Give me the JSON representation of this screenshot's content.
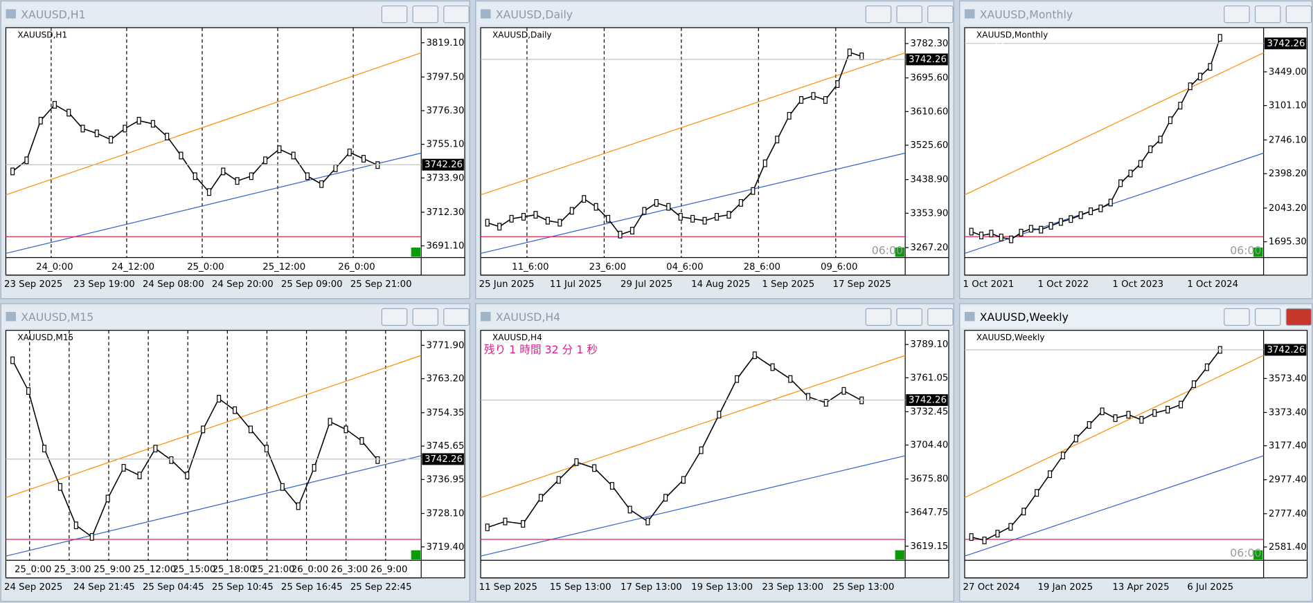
{
  "windows": [
    {
      "title": "XAUUSD,H1",
      "label": "XAUUSD,H1",
      "active": false,
      "ylim": [
        3683.7,
        3828.6
      ],
      "yticks": [
        {
          "value": 3819.1,
          "label": "3819.10"
        },
        {
          "value": 3797.5,
          "label": "3797.50"
        },
        {
          "value": 3776.3,
          "label": "3776.30"
        },
        {
          "value": 3755.1,
          "label": "3755.10"
        },
        {
          "value": 3733.9,
          "label": "3733.90"
        },
        {
          "value": 3712.3,
          "label": "3712.30"
        },
        {
          "value": 3691.1,
          "label": "3691.10"
        }
      ],
      "price": 3742.26,
      "periods": [
        "24_0:00",
        "24_12:00",
        "25_0:00",
        "25_12:00",
        "26_0:00"
      ],
      "dates": [
        "23 Sep 2025",
        "23 Sep 19:00",
        "24 Sep 08:00",
        "24 Sep 20:00",
        "25 Sep 09:00",
        "25 Sep 21:00"
      ],
      "closes": [
        3738,
        3745,
        3770,
        3780,
        3775,
        3765,
        3762,
        3758,
        3765,
        3770,
        3768,
        3760,
        3748,
        3735,
        3725,
        3738,
        3732,
        3735,
        3745,
        3752,
        3748,
        3735,
        3730,
        3740,
        3750,
        3746,
        3742
      ]
    },
    {
      "title": "XAUUSD,Daily",
      "label": "XAUUSD,Daily",
      "active": false,
      "ylim": [
        3241.9,
        3822.4
      ],
      "yticks": [
        {
          "value": 3782.3,
          "label": "3782.30"
        },
        {
          "value": 3695.6,
          "label": "3695.60"
        },
        {
          "value": 3610.6,
          "label": "3610.60"
        },
        {
          "value": 3525.6,
          "label": "3525.60"
        },
        {
          "value": 3438.9,
          "label": "3438.90"
        },
        {
          "value": 3353.9,
          "label": "3353.90"
        },
        {
          "value": 3267.2,
          "label": "3267.20"
        }
      ],
      "price": 3742.26,
      "countdown": "06:00",
      "periods": [
        "11_6:00",
        "23_6:00",
        "04_6:00",
        "28_6:00",
        "09_6:00"
      ],
      "dates": [
        "25 Jun 2025",
        "11 Jul 2025",
        "29 Jul 2025",
        "14 Aug 2025",
        "1 Sep 2025",
        "17 Sep 2025"
      ],
      "closes": [
        3330,
        3320,
        3340,
        3345,
        3350,
        3335,
        3330,
        3360,
        3390,
        3370,
        3340,
        3300,
        3310,
        3360,
        3380,
        3370,
        3345,
        3340,
        3335,
        3345,
        3350,
        3380,
        3410,
        3480,
        3540,
        3600,
        3640,
        3650,
        3640,
        3680,
        3760,
        3750
      ]
    },
    {
      "title": "XAUUSD,Monthly",
      "label": "XAUUSD,Monthly",
      "active": false,
      "ylim": [
        1532,
        3905
      ],
      "yticks": [
        {
          "value": 3449,
          "label": "3449.00"
        },
        {
          "value": 3101.1,
          "label": "3101.10"
        },
        {
          "value": 2746.1,
          "label": "2746.10"
        },
        {
          "value": 2398.2,
          "label": "2398.20"
        },
        {
          "value": 2043.2,
          "label": "2043.20"
        },
        {
          "value": 1695.3,
          "label": "1695.30"
        }
      ],
      "price": 3742.26,
      "countdown": "06:00",
      "note": "Y1",
      "periods": [],
      "dates": [
        "1 Oct 2021",
        "1 Oct 2022",
        "1 Oct 2023",
        "1 Oct 2024"
      ],
      "closes": [
        1800,
        1760,
        1780,
        1740,
        1720,
        1790,
        1830,
        1820,
        1860,
        1900,
        1930,
        1970,
        2010,
        2040,
        2100,
        2300,
        2400,
        2500,
        2650,
        2750,
        2950,
        3100,
        3300,
        3400,
        3500,
        3800
      ]
    },
    {
      "title": "XAUUSD,M15",
      "label": "XAUUSD,M15",
      "active": false,
      "ylim": [
        3715.9,
        3775.8
      ],
      "yticks": [
        {
          "value": 3771.9,
          "label": "3771.90"
        },
        {
          "value": 3763.2,
          "label": "3763.20"
        },
        {
          "value": 3754.35,
          "label": "3754.35"
        },
        {
          "value": 3745.65,
          "label": "3745.65"
        },
        {
          "value": 3736.95,
          "label": "3736.95"
        },
        {
          "value": 3728.1,
          "label": "3728.10"
        },
        {
          "value": 3719.4,
          "label": "3719.40"
        }
      ],
      "price": 3742.26,
      "periods": [
        "25_0:00",
        "25_3:00",
        "25_9:00",
        "25_12:00",
        "25_15:00",
        "25_18:00",
        "25_21:00",
        "26_0:00",
        "26_3:00",
        "26_9:00"
      ],
      "dates": [
        "24 Sep 2025",
        "24 Sep 21:45",
        "25 Sep 04:45",
        "25 Sep 10:45",
        "25 Sep 16:45",
        "25 Sep 22:45"
      ],
      "closes": [
        3768,
        3760,
        3745,
        3735,
        3725,
        3722,
        3732,
        3740,
        3738,
        3745,
        3742,
        3738,
        3750,
        3758,
        3755,
        3750,
        3745,
        3735,
        3730,
        3740,
        3752,
        3750,
        3747,
        3742
      ]
    },
    {
      "title": "XAUUSD,H4",
      "label": "XAUUSD,H4",
      "active": false,
      "ylim": [
        3607.3,
        3801
      ],
      "yticks": [
        {
          "value": 3789.1,
          "label": "3789.10"
        },
        {
          "value": 3761.05,
          "label": "3761.05"
        },
        {
          "value": 3732.45,
          "label": "3732.45"
        },
        {
          "value": 3704.4,
          "label": "3704.40"
        },
        {
          "value": 3675.8,
          "label": "3675.80"
        },
        {
          "value": 3647.75,
          "label": "3647.75"
        },
        {
          "value": 3619.15,
          "label": "3619.15"
        }
      ],
      "price": 3742.26,
      "timer": "残り 1 時間 32 分 1 秒",
      "periods": [],
      "dates": [
        "11 Sep 2025",
        "15 Sep 13:00",
        "17 Sep 13:00",
        "19 Sep 13:00",
        "23 Sep 13:00",
        "25 Sep 13:00"
      ],
      "closes": [
        3635,
        3640,
        3638,
        3660,
        3675,
        3690,
        3685,
        3670,
        3650,
        3640,
        3660,
        3675,
        3700,
        3730,
        3760,
        3780,
        3770,
        3760,
        3745,
        3740,
        3750,
        3742
      ]
    },
    {
      "title": "XAUUSD,Weekly",
      "label": "XAUUSD,Weekly",
      "active": true,
      "ylim": [
        2503,
        3857
      ],
      "yticks": [
        {
          "value": 3573.4,
          "label": "3573.40"
        },
        {
          "value": 3373.4,
          "label": "3373.40"
        },
        {
          "value": 3177.4,
          "label": "3177.40"
        },
        {
          "value": 2977.4,
          "label": "2977.40"
        },
        {
          "value": 2777.4,
          "label": "2777.40"
        },
        {
          "value": 2581.4,
          "label": "2581.40"
        }
      ],
      "price": 3742.26,
      "countdown": "06:00",
      "periods": [],
      "dates": [
        "27 Oct 2024",
        "19 Jan 2025",
        "13 Apr 2025",
        "6 Jul 2025"
      ],
      "closes": [
        2640,
        2620,
        2660,
        2700,
        2790,
        2900,
        3010,
        3120,
        3220,
        3300,
        3380,
        3340,
        3360,
        3330,
        3370,
        3390,
        3420,
        3540,
        3640,
        3742
      ]
    }
  ]
}
